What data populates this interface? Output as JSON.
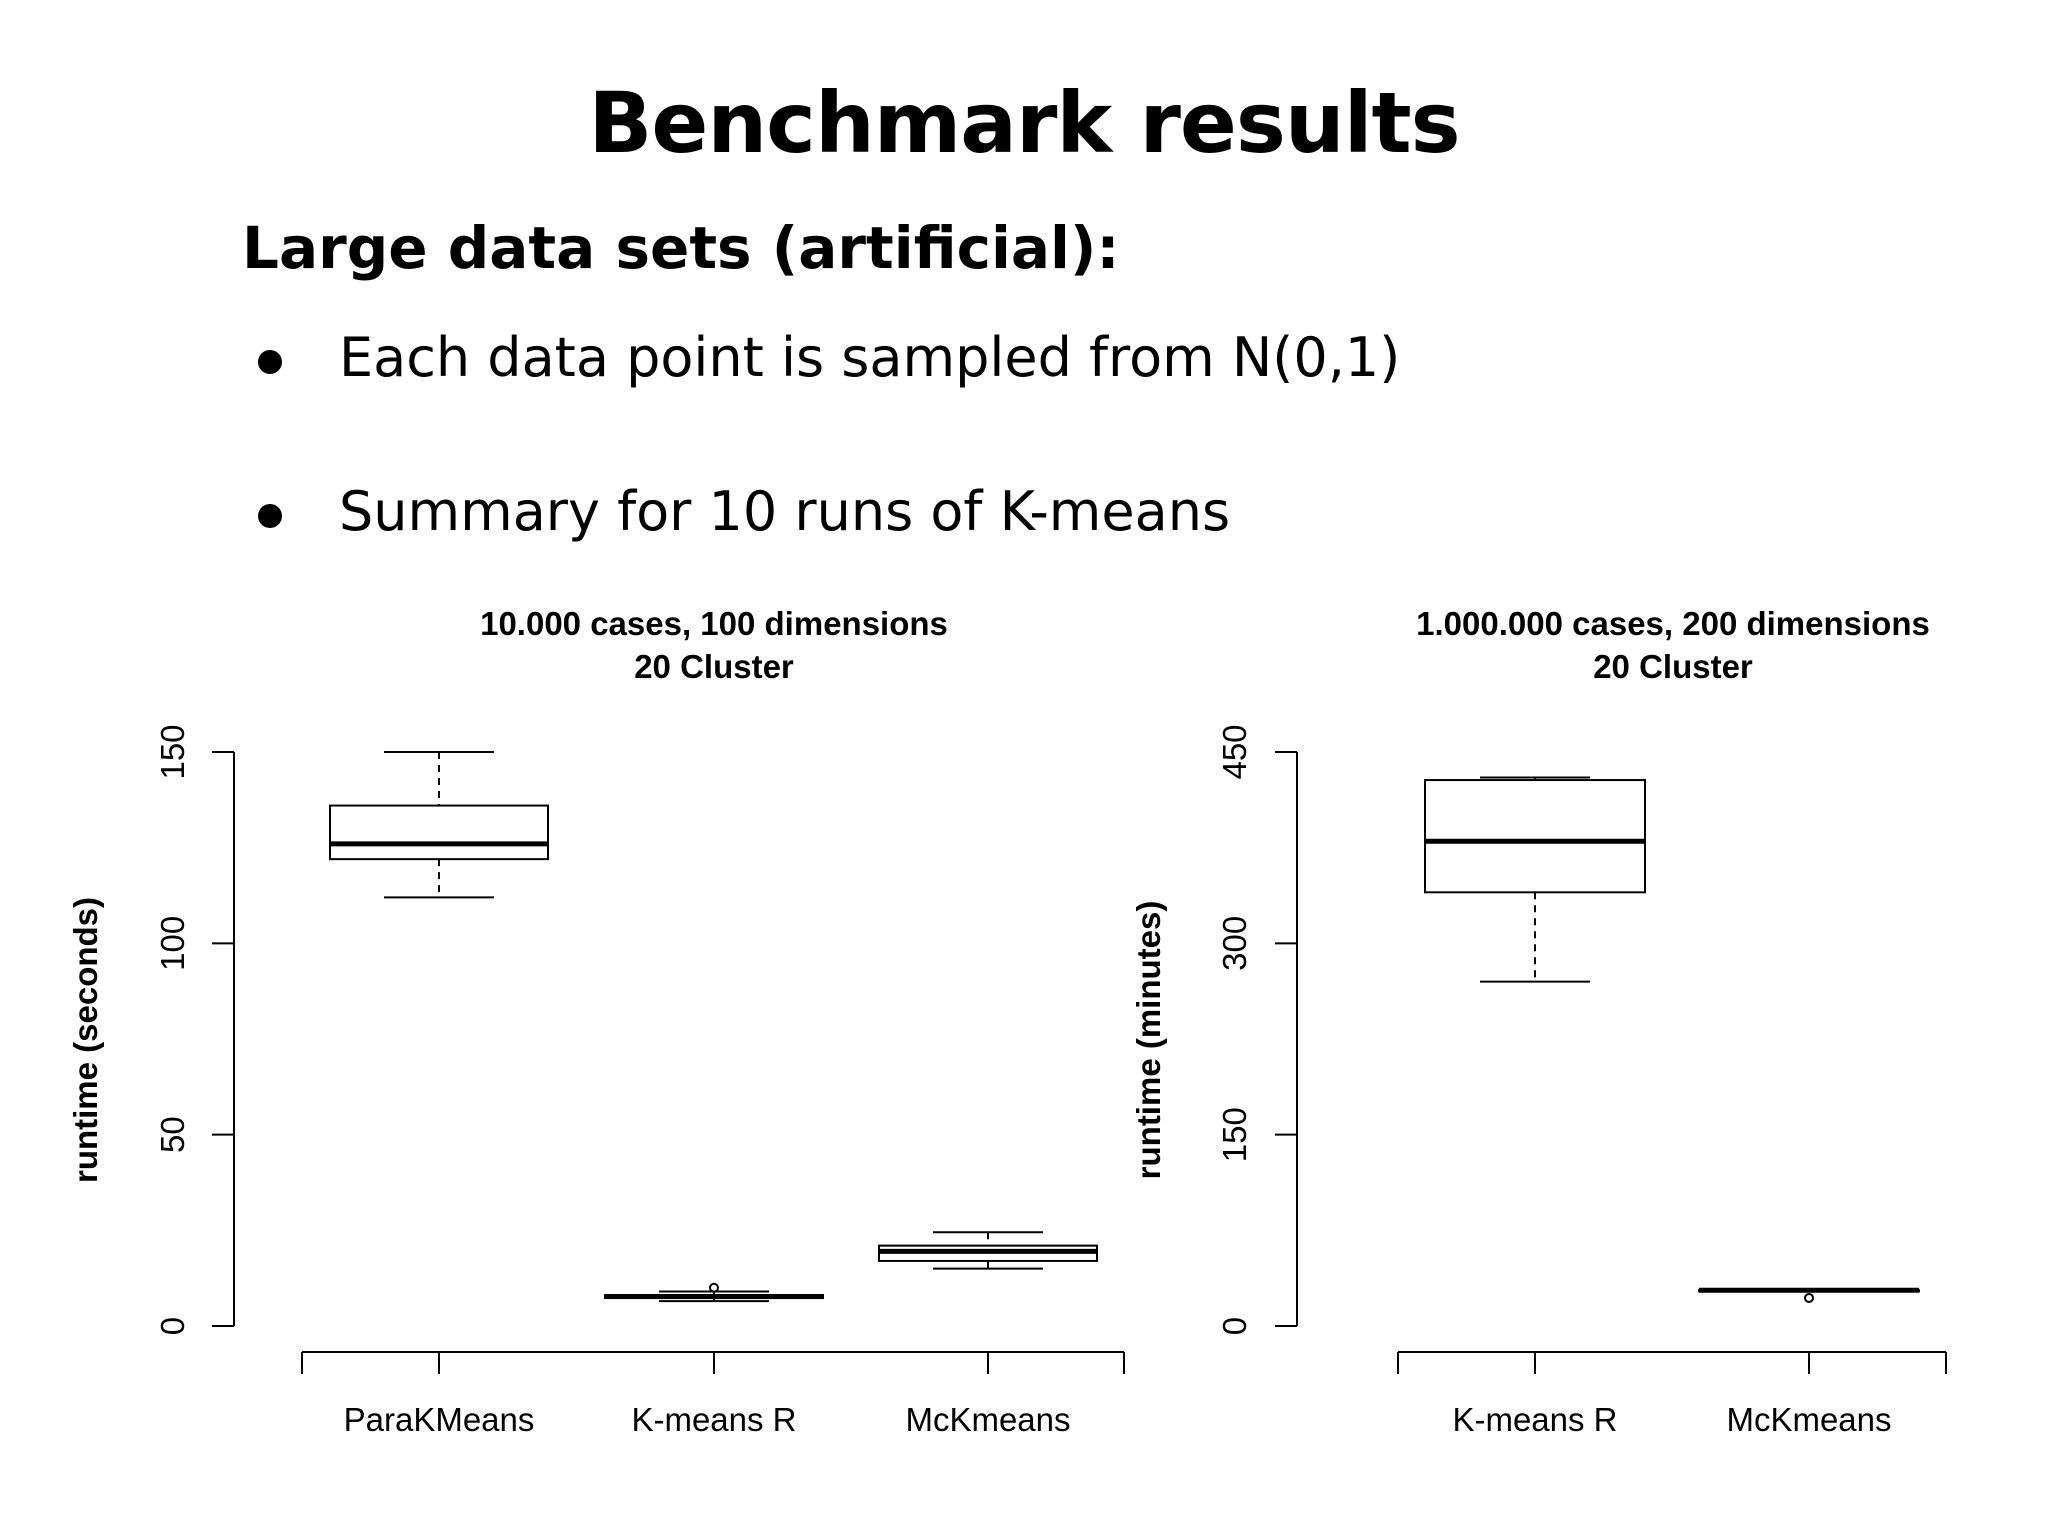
{
  "slide": {
    "title": "Benchmark results",
    "heading": "Large data sets (artificial):",
    "bullets": [
      "Each data point is sampled from N(0,1)",
      "Summary for 10 runs of K-means"
    ]
  },
  "chart_data": [
    {
      "type": "boxplot",
      "title": [
        "10.000 cases, 100 dimensions",
        "20 Cluster"
      ],
      "xlabel": "",
      "ylabel": "runtime (seconds)",
      "ylim": [
        0,
        150
      ],
      "yticks": [
        0,
        50,
        100,
        150
      ],
      "categories": [
        "ParaKMeans",
        "K-means R",
        "McKmeans"
      ],
      "boxes": [
        {
          "min": 112,
          "q1": 122,
          "median": 126,
          "q3": 136,
          "max": 150,
          "outliers": []
        },
        {
          "min": 6.5,
          "q1": 7.3,
          "median": 7.7,
          "q3": 8.1,
          "max": 9,
          "outliers": [
            10
          ]
        },
        {
          "min": 15,
          "q1": 17,
          "median": 19.5,
          "q3": 21,
          "max": 24.5,
          "outliers": []
        }
      ]
    },
    {
      "type": "boxplot",
      "title": [
        "1.000.000 cases, 200 dimensions",
        "20 Cluster"
      ],
      "xlabel": "",
      "ylabel": "runtime (minutes)",
      "ylim": [
        0,
        450
      ],
      "yticks": [
        0,
        150,
        300,
        450
      ],
      "categories": [
        "K-means R",
        "McKmeans"
      ],
      "boxes": [
        {
          "min": 270,
          "q1": 340,
          "median": 380,
          "q3": 428,
          "max": 430,
          "outliers": []
        },
        {
          "min": 28,
          "q1": 28,
          "median": 28,
          "q3": 28,
          "max": 28,
          "outliers": [
            22
          ]
        }
      ]
    }
  ]
}
